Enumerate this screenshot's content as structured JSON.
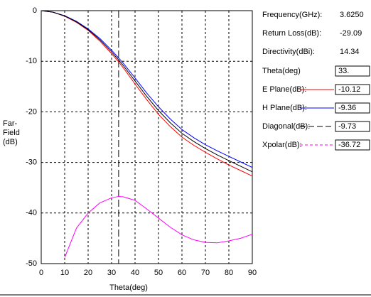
{
  "chart_data": {
    "type": "line",
    "y_label": [
      "Far-",
      "Field",
      "(dB)"
    ],
    "x_label": "Theta(deg)",
    "x": [
      0,
      5,
      10,
      15,
      20,
      25,
      30,
      33,
      35,
      40,
      45,
      50,
      55,
      60,
      65,
      70,
      75,
      80,
      85,
      90
    ],
    "xlim": [
      0,
      90
    ],
    "xticks": [
      0,
      10,
      20,
      30,
      40,
      50,
      60,
      70,
      80,
      90
    ],
    "ylim": [
      -50,
      0
    ],
    "yticks": [
      0,
      -10,
      -20,
      -30,
      -40,
      -50
    ],
    "grid": true,
    "cursor": {
      "value": 33,
      "label": "33."
    },
    "series": [
      {
        "name": "E Plane(dB):",
        "color": "#ff0000",
        "readout": "-10.12",
        "values": [
          0,
          -0.3,
          -1.1,
          -2.3,
          -3.9,
          -6.0,
          -8.5,
          -10.12,
          -11.3,
          -14.5,
          -17.6,
          -20.5,
          -22.9,
          -25.0,
          -26.6,
          -28.0,
          -29.3,
          -30.5,
          -31.6,
          -32.7
        ]
      },
      {
        "name": "H Plane(dB):",
        "color": "#0000ff",
        "readout": "-9.36",
        "values": [
          0,
          -0.3,
          -1.0,
          -2.1,
          -3.6,
          -5.5,
          -7.8,
          -9.36,
          -10.4,
          -13.3,
          -16.3,
          -19.0,
          -21.4,
          -23.5,
          -25.1,
          -26.5,
          -27.7,
          -28.8,
          -29.9,
          -31.0
        ]
      },
      {
        "name": "Diagonal(dB):",
        "color": "#000000",
        "readout": "-9.73",
        "values": [
          0,
          -0.3,
          -1.05,
          -2.2,
          -3.75,
          -5.75,
          -8.15,
          -9.73,
          -10.85,
          -13.9,
          -16.95,
          -19.75,
          -22.15,
          -24.25,
          -25.85,
          -27.25,
          -28.5,
          -29.65,
          -30.75,
          -31.85
        ]
      },
      {
        "name": "Xpolar(dB):",
        "color": "#ff00ff",
        "readout": "-36.72",
        "values": [
          null,
          null,
          -48.8,
          -43,
          -40,
          -38,
          -37,
          -36.72,
          -36.8,
          -37.5,
          -39.2,
          -41,
          -42.8,
          -44.3,
          -45.3,
          -45.8,
          -45.9,
          -45.5,
          -45,
          -44.2
        ]
      }
    ]
  },
  "panel": [
    {
      "label": "Frequency(GHz):",
      "value": "3.6250"
    },
    {
      "label": "Return Loss(dB):",
      "value": "-29.09"
    },
    {
      "label": "Directivity(dBi):",
      "value": "14.34"
    }
  ],
  "cursor_label": "Theta(deg)"
}
